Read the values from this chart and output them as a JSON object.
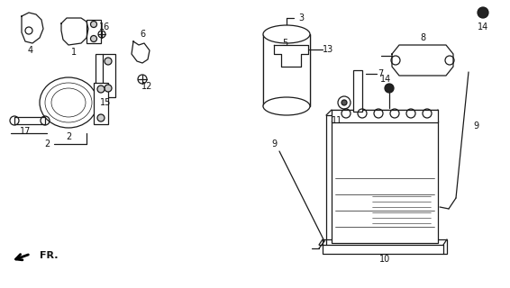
{
  "bg_color": "#ffffff",
  "line_color": "#1a1a1a",
  "label_color": "#111111",
  "fig_width": 5.66,
  "fig_height": 3.2,
  "dpi": 100,
  "lw": 0.9
}
